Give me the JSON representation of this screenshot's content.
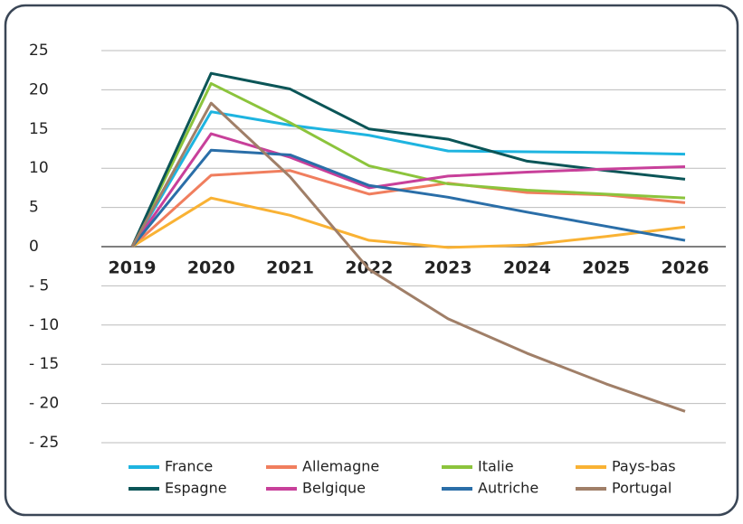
{
  "chart_data": {
    "type": "line",
    "categories": [
      "2019",
      "2020",
      "2021",
      "2022",
      "2023",
      "2024",
      "2025",
      "2026"
    ],
    "series": [
      {
        "name": "France",
        "color": "#1eb4e0",
        "values": [
          0,
          17.2,
          15.5,
          14.2,
          12.2,
          12.1,
          12.0,
          11.8
        ]
      },
      {
        "name": "Allemagne",
        "color": "#f07e5e",
        "values": [
          0,
          9.1,
          9.7,
          6.7,
          8.1,
          6.9,
          6.6,
          5.6
        ]
      },
      {
        "name": "Italie",
        "color": "#8cc43c",
        "values": [
          0,
          20.8,
          15.8,
          10.3,
          8.0,
          7.2,
          6.7,
          6.2
        ]
      },
      {
        "name": "Pays-bas",
        "color": "#f9b234",
        "values": [
          0,
          6.2,
          4.0,
          0.8,
          -0.1,
          0.2,
          1.3,
          2.5
        ]
      },
      {
        "name": "Espagne",
        "color": "#0b5557",
        "values": [
          0,
          22.1,
          20.1,
          15.0,
          13.7,
          10.9,
          9.7,
          8.6
        ]
      },
      {
        "name": "Belgique",
        "color": "#c8409a",
        "values": [
          0,
          14.4,
          11.4,
          7.5,
          9.0,
          9.5,
          9.9,
          10.2
        ]
      },
      {
        "name": "Autriche",
        "color": "#2a6ea8",
        "values": [
          0,
          12.3,
          11.7,
          7.8,
          6.3,
          4.4,
          2.6,
          0.8
        ]
      },
      {
        "name": "Portugal",
        "color": "#a07f68",
        "values": [
          0,
          18.3,
          8.9,
          -2.9,
          -9.2,
          -13.6,
          -17.5,
          -21.0
        ]
      }
    ],
    "ylim": [
      -25,
      25
    ],
    "yticks": [
      {
        "value": -25,
        "label": "- 25"
      },
      {
        "value": -20,
        "label": "- 20"
      },
      {
        "value": -15,
        "label": "- 15"
      },
      {
        "value": -10,
        "label": "- 10"
      },
      {
        "value": -5,
        "label": "- 5"
      },
      0,
      5,
      10,
      15,
      20,
      25
    ],
    "grid": true
  }
}
